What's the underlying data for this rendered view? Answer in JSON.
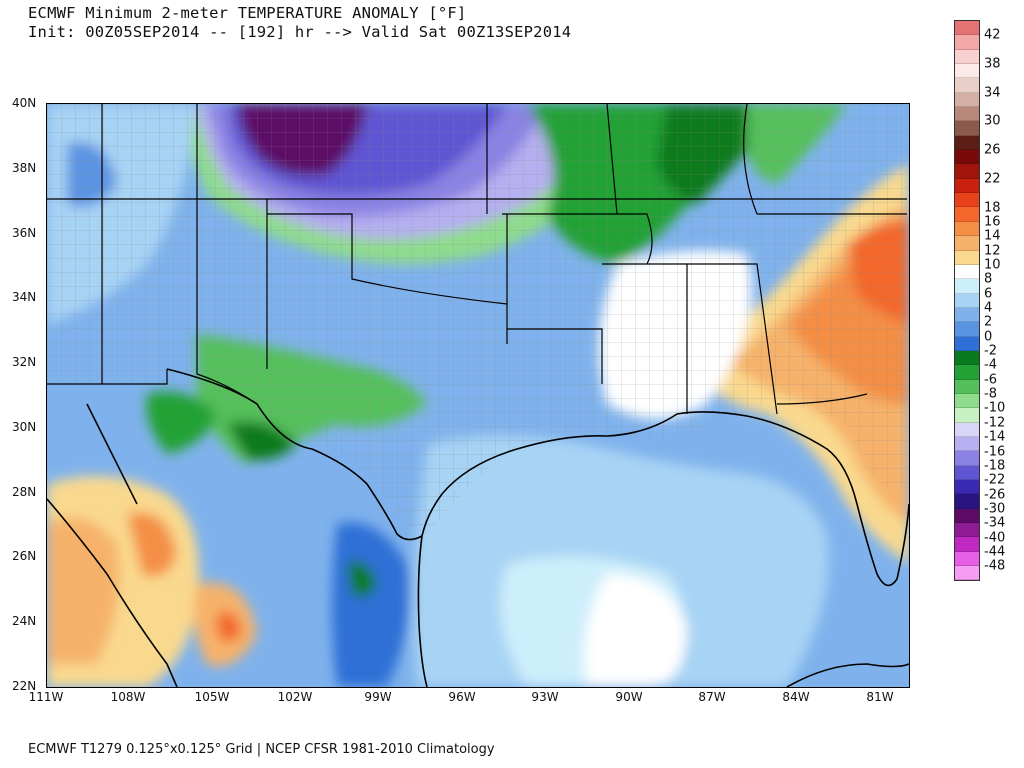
{
  "title": {
    "line1": "ECMWF Minimum 2-meter TEMPERATURE ANOMALY [°F]",
    "line2": "Init: 00Z05SEP2014 -- [192] hr --> Valid Sat 00Z13SEP2014"
  },
  "footer": "ECMWF T1279 0.125°x0.125° Grid | NCEP CFSR 1981-2010 Climatology",
  "map": {
    "lat_labels": [
      "40N",
      "38N",
      "36N",
      "34N",
      "32N",
      "30N",
      "28N",
      "26N",
      "24N",
      "22N"
    ],
    "lon_labels": [
      "111W",
      "108W",
      "105W",
      "102W",
      "99W",
      "96W",
      "93W",
      "90W",
      "87W",
      "84W",
      "81W"
    ]
  },
  "legend": {
    "tick_labels": [
      "42",
      "38",
      "34",
      "30",
      "26",
      "22",
      "18",
      "16",
      "14",
      "12",
      "10",
      "8",
      "6",
      "4",
      "2",
      "0",
      "-2",
      "-4",
      "-6",
      "-8",
      "-10",
      "-12",
      "-14",
      "-16",
      "-18",
      "-22",
      "-26",
      "-30",
      "-34",
      "-40",
      "-44",
      "-48"
    ],
    "colors": [
      "#e57373",
      "#f4a9a9",
      "#f9d0d0",
      "#fbeae8",
      "#e8cfc8",
      "#d4b0a4",
      "#b8897a",
      "#8c5a4a",
      "#5a1e14",
      "#7a0a0a",
      "#a0140c",
      "#c9200e",
      "#e8411a",
      "#f3682a",
      "#f48e45",
      "#f6b26b",
      "#f9d98e",
      "#ffffff",
      "#cdeefb",
      "#a7d3f4",
      "#7fb2ec",
      "#5b93e3",
      "#2f6fd6",
      "#0a7a1e",
      "#22a135",
      "#55c05b",
      "#8fdc8c",
      "#c7f0c3",
      "#d8d5f7",
      "#b6aff0",
      "#8b82e4",
      "#5f55d3",
      "#3a2ab3",
      "#2a1480",
      "#5c0a66",
      "#8e1a94",
      "#c028c2",
      "#e65ee5",
      "#f59cf3"
    ]
  }
}
